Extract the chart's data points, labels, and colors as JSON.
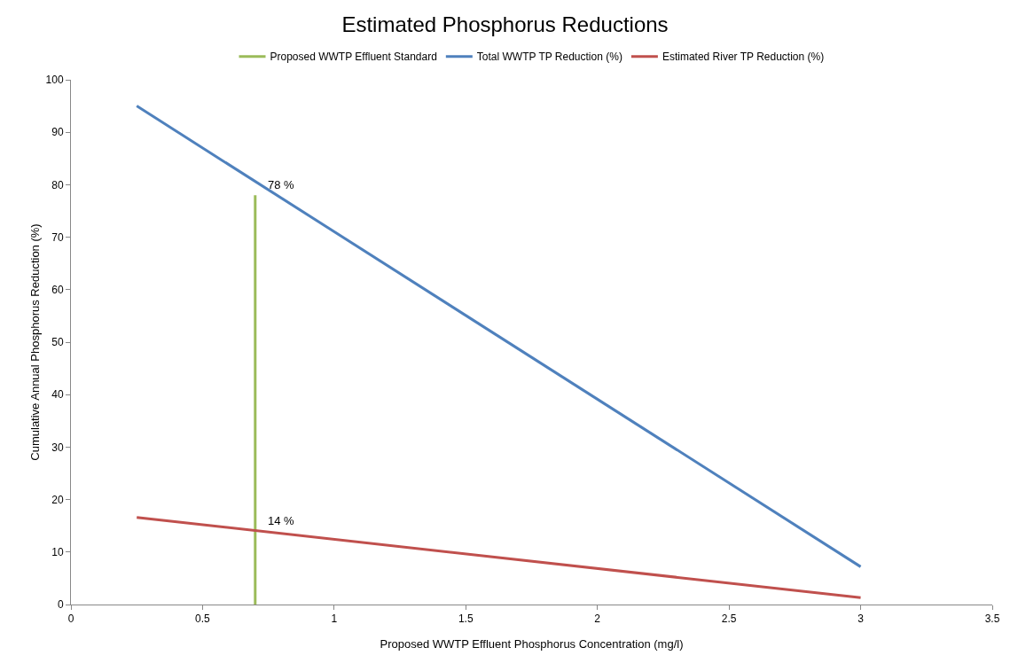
{
  "chart_data": {
    "type": "line",
    "title": "Estimated Phosphorus Reductions",
    "xlabel": "Proposed WWTP Effluent Phosphorus Concentration (mg/l)",
    "ylabel": "Cumulative Annual Phosphorus Reduction (%)",
    "series": [
      {
        "name": "Proposed WWTP Effluent Standard",
        "color": "#9bbb59",
        "x": [
          0.7,
          0.7
        ],
        "values": [
          0,
          78
        ]
      },
      {
        "name": "Total WWTP TP Reduction (%)",
        "color": "#4f81bd",
        "x": [
          0.25,
          3
        ],
        "values": [
          95,
          7.2
        ]
      },
      {
        "name": "Estimated River TP Reduction (%)",
        "color": "#c0504d",
        "x": [
          0.25,
          3
        ],
        "values": [
          16.6,
          1.3
        ]
      }
    ],
    "annotations": [
      {
        "text": "78 %",
        "x": 0.7,
        "y": 78
      },
      {
        "text": "14 %",
        "x": 0.7,
        "y": 14
      }
    ],
    "xlim": [
      0,
      3.5
    ],
    "xticks": [
      0,
      0.5,
      1,
      1.5,
      2,
      2.5,
      3,
      3.5
    ],
    "ylim": [
      0,
      100
    ],
    "yticks": [
      0,
      10,
      20,
      30,
      40,
      50,
      60,
      70,
      80,
      90,
      100
    ],
    "grid": false,
    "legend": "top",
    "marker": "none",
    "line_style": "solid"
  }
}
